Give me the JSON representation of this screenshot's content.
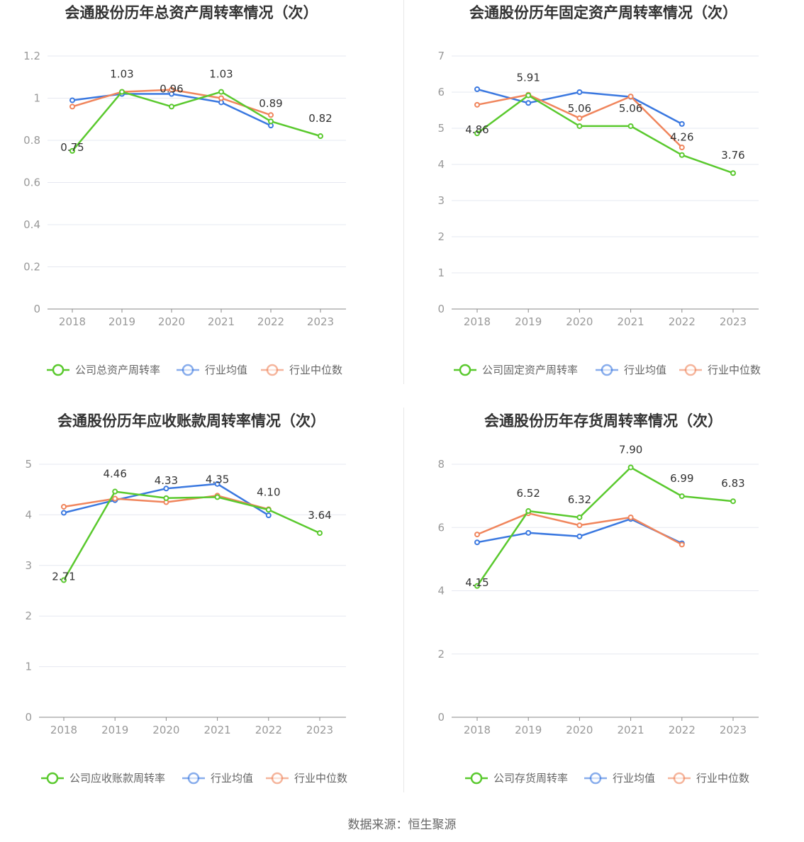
{
  "colors": {
    "company": "#5ac92e",
    "avg": "#3a78e0",
    "median": "#f0855c",
    "grid": "#e6e8f0",
    "axis": "#999999"
  },
  "footer": {
    "source": "数据来源：恒生聚源"
  },
  "chart_data": [
    {
      "type": "line",
      "title": "会通股份历年总资产周转率情况（次）",
      "categories": [
        "2018",
        "2019",
        "2020",
        "2021",
        "2022",
        "2023"
      ],
      "y_ticks": [
        "0",
        "0.2",
        "0.4",
        "0.6",
        "0.8",
        "1",
        "1.2"
      ],
      "ylim": [
        0,
        1.2
      ],
      "series": [
        {
          "name": "公司总资产周转率",
          "values": [
            0.75,
            1.03,
            0.96,
            1.03,
            0.89,
            0.82
          ],
          "labels": [
            "0.75",
            "1.03",
            "0.96",
            "1.03",
            "0.89",
            "0.82"
          ]
        },
        {
          "name": "行业均值",
          "values": [
            0.99,
            1.02,
            1.02,
            0.98,
            0.87,
            null
          ]
        },
        {
          "name": "行业中位数",
          "values": [
            0.96,
            1.03,
            1.04,
            1.0,
            0.92,
            null
          ]
        }
      ]
    },
    {
      "type": "line",
      "title": "会通股份历年固定资产周转率情况（次）",
      "categories": [
        "2018",
        "2019",
        "2020",
        "2021",
        "2022",
        "2023"
      ],
      "y_ticks": [
        "0",
        "1",
        "2",
        "3",
        "4",
        "5",
        "6",
        "7"
      ],
      "ylim": [
        0,
        7
      ],
      "series": [
        {
          "name": "公司固定资产周转率",
          "values": [
            4.86,
            5.91,
            5.06,
            5.06,
            4.26,
            3.76
          ],
          "labels": [
            "4.86",
            "5.91",
            "5.06",
            "5.06",
            "4.26",
            "3.76"
          ]
        },
        {
          "name": "行业均值",
          "values": [
            6.08,
            5.7,
            6.0,
            5.87,
            5.12,
            null
          ]
        },
        {
          "name": "行业中位数",
          "values": [
            5.65,
            5.93,
            5.28,
            5.88,
            4.47,
            null
          ]
        }
      ]
    },
    {
      "type": "line",
      "title": "会通股份历年应收账款周转率情况（次）",
      "categories": [
        "2018",
        "2019",
        "2020",
        "2021",
        "2022",
        "2023"
      ],
      "y_ticks": [
        "0",
        "1",
        "2",
        "3",
        "4",
        "5"
      ],
      "ylim": [
        0,
        5
      ],
      "series": [
        {
          "name": "公司应收账款周转率",
          "values": [
            2.71,
            4.46,
            4.33,
            4.35,
            4.1,
            3.64
          ],
          "labels": [
            "2.71",
            "4.46",
            "4.33",
            "4.35",
            "4.10",
            "3.64"
          ]
        },
        {
          "name": "行业均值",
          "values": [
            4.04,
            4.29,
            4.52,
            4.61,
            3.99,
            null
          ]
        },
        {
          "name": "行业中位数",
          "values": [
            4.16,
            4.32,
            4.25,
            4.38,
            4.11,
            null
          ]
        }
      ]
    },
    {
      "type": "line",
      "title": "会通股份历年存货周转率情况（次）",
      "categories": [
        "2018",
        "2019",
        "2020",
        "2021",
        "2022",
        "2023"
      ],
      "y_ticks": [
        "0",
        "2",
        "4",
        "6",
        "8"
      ],
      "ylim": [
        0,
        8
      ],
      "series": [
        {
          "name": "公司存货周转率",
          "values": [
            4.15,
            6.52,
            6.32,
            7.9,
            6.99,
            6.83
          ],
          "labels": [
            "4.15",
            "6.52",
            "6.32",
            "7.90",
            "6.99",
            "6.83"
          ]
        },
        {
          "name": "行业均值",
          "values": [
            5.53,
            5.83,
            5.72,
            6.27,
            5.5,
            null
          ]
        },
        {
          "name": "行业中位数",
          "values": [
            5.78,
            6.45,
            6.07,
            6.32,
            5.46,
            null
          ]
        }
      ]
    }
  ]
}
